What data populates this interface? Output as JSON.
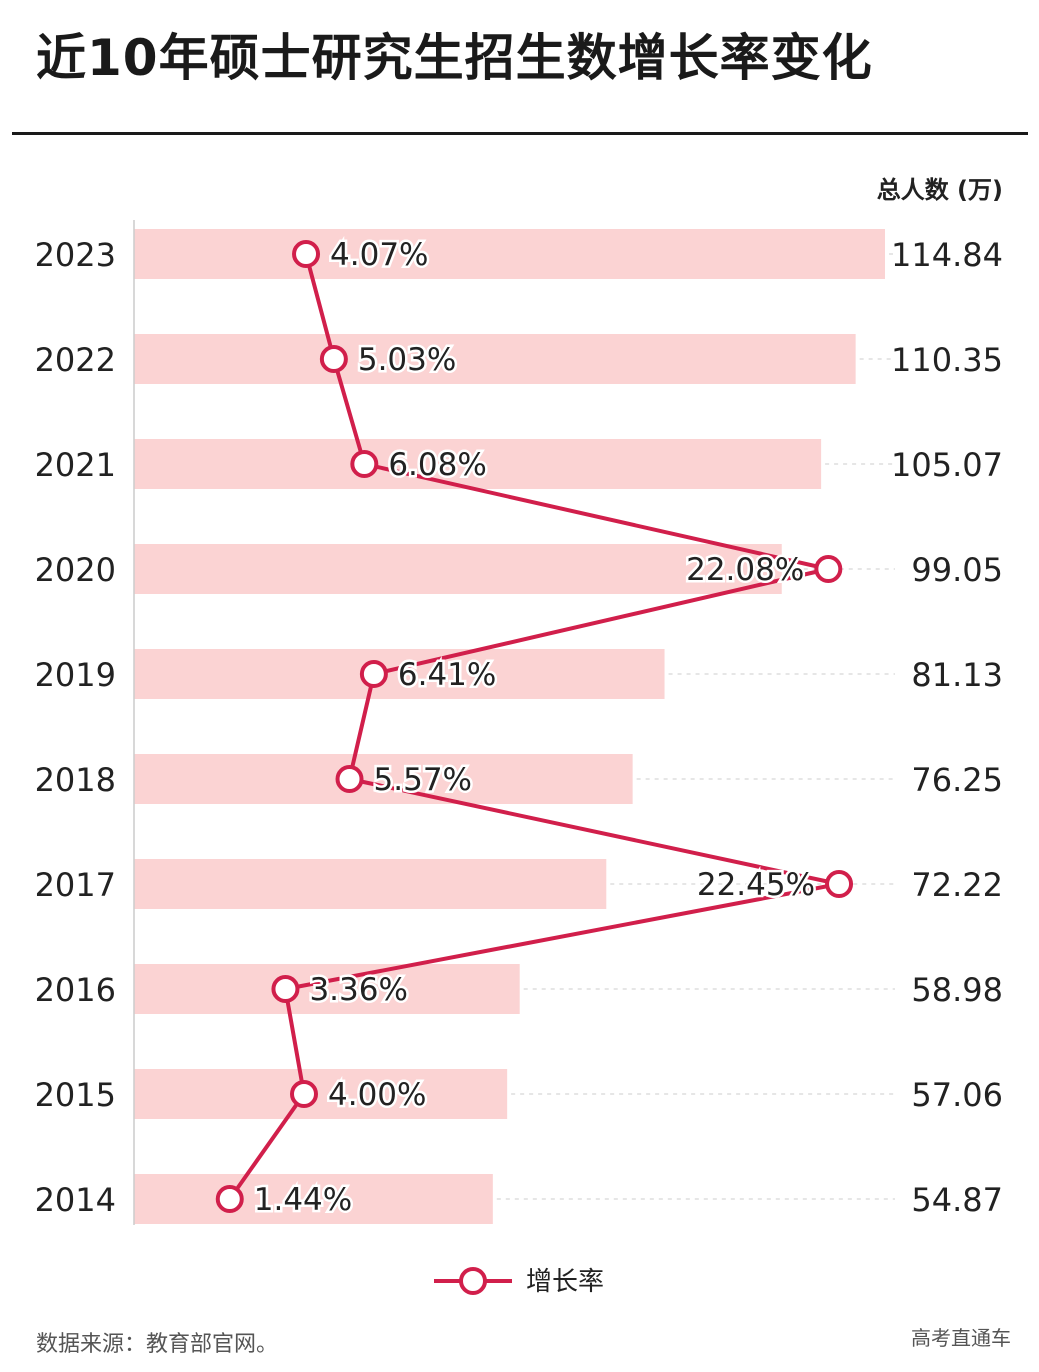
{
  "title": "近10年硕士研究生招生数增长率变化",
  "source_note": "数据来源：教育部官网。",
  "brand_label": "高考直通车",
  "colors": {
    "bar": "#fbd3d3",
    "line": "#d11f4b",
    "grid": "#dddddd",
    "text": "#222222"
  },
  "chart_data": {
    "type": "bar",
    "orientation": "horizontal",
    "categories": [
      "2023",
      "2022",
      "2021",
      "2020",
      "2019",
      "2018",
      "2017",
      "2016",
      "2015",
      "2014"
    ],
    "series": [
      {
        "unit_label": "总人数 (万)",
        "values": [
          114.84,
          110.35,
          105.07,
          99.05,
          81.13,
          76.25,
          72.22,
          58.98,
          57.06,
          54.87
        ],
        "value_labels": [
          "114.84",
          "110.35",
          "105.07",
          "99.05",
          "81.13",
          "76.25",
          "72.22",
          "58.98",
          "57.06",
          "54.87"
        ]
      },
      {
        "name": "增长率",
        "type": "line",
        "values": [
          4.07,
          5.03,
          6.08,
          22.08,
          6.41,
          5.57,
          22.45,
          3.36,
          4.0,
          1.44
        ],
        "value_labels": [
          "4.07%",
          "5.03%",
          "6.08%",
          "22.08%",
          "6.41%",
          "5.57%",
          "22.45%",
          "3.36%",
          "4.00%",
          "1.44%"
        ]
      }
    ],
    "legend": "bottom-center",
    "grid": "dashed horizontal guide lines"
  }
}
